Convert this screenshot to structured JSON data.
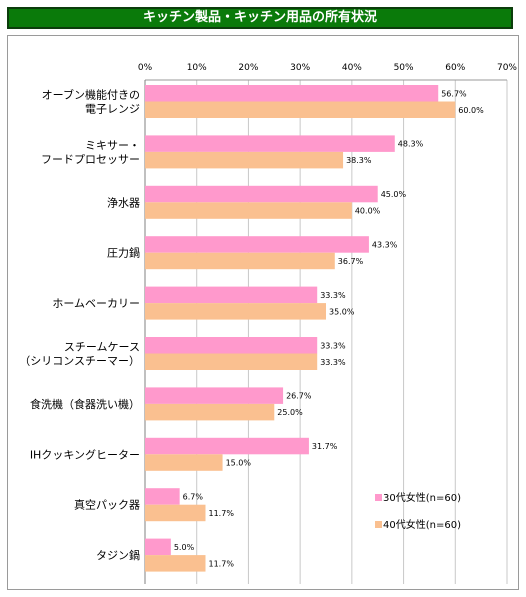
{
  "title": "キッチン製品・キッチン用品の所有状況",
  "chart_data": {
    "type": "bar",
    "orientation": "horizontal",
    "categories": [
      [
        "オーブン機能付きの",
        "電子レンジ"
      ],
      [
        "ミキサー・",
        "フードプロセッサー"
      ],
      [
        "浄水器"
      ],
      [
        "圧力鍋"
      ],
      [
        "ホームベーカリー"
      ],
      [
        "スチームケース",
        "（シリコンスチーマー）"
      ],
      [
        "食洗機（食器洗い機）"
      ],
      [
        "IHクッキングヒーター"
      ],
      [
        "真空パック器"
      ],
      [
        "タジン鍋"
      ]
    ],
    "series": [
      {
        "name": "30代女性(n=60)",
        "color": "#ff99cc",
        "values": [
          56.7,
          48.3,
          45.0,
          43.3,
          33.3,
          33.3,
          26.7,
          31.7,
          6.7,
          5.0
        ],
        "labels": [
          "56.7%",
          "48.3%",
          "45.0%",
          "43.3%",
          "33.3%",
          "33.3%",
          "26.7%",
          "31.7%",
          "6.7%",
          "5.0%"
        ]
      },
      {
        "name": "40代女性(n=60)",
        "color": "#fac090",
        "values": [
          60.0,
          38.3,
          40.0,
          36.7,
          35.0,
          33.3,
          25.0,
          15.0,
          11.7,
          11.7
        ],
        "labels": [
          "60.0%",
          "38.3%",
          "40.0%",
          "36.7%",
          "35.0%",
          "33.3%",
          "25.0%",
          "15.0%",
          "11.7%",
          "11.7%"
        ]
      }
    ],
    "xlim": [
      0,
      70
    ],
    "xticks": [
      "0%",
      "10%",
      "20%",
      "30%",
      "40%",
      "50%",
      "60%",
      "70%"
    ],
    "grid": true,
    "legend_position": "bottom-right"
  }
}
